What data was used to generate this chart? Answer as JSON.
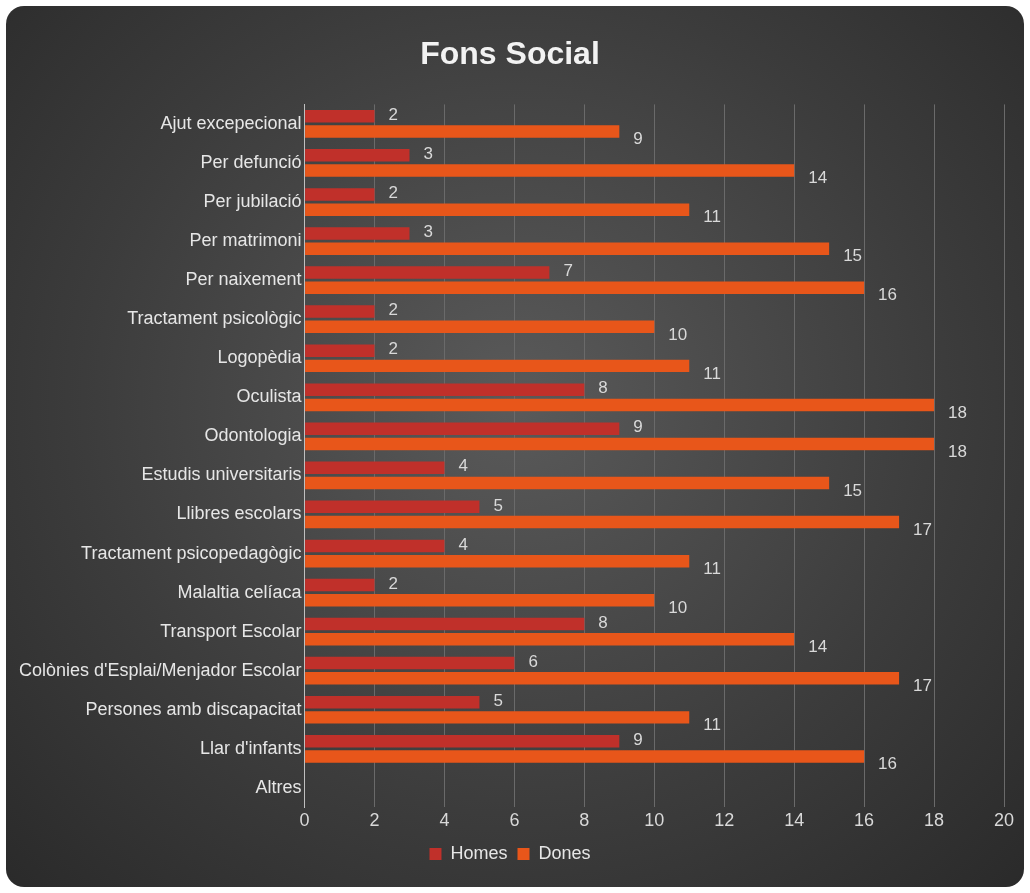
{
  "chart_data": {
    "type": "bar",
    "orientation": "horizontal",
    "title": "Fons Social",
    "categories": [
      "Ajut excepecional",
      "Per defunció",
      "Per jubilació",
      "Per matrimoni",
      "Per naixement",
      "Tractament psicològic",
      "Logopèdia",
      "Oculista",
      "Odontologia",
      "Estudis universitaris",
      "Llibres escolars",
      "Tractament psicopedagògic",
      "Malaltia celíaca",
      "Transport Escolar",
      "Colònies d'Esplai/Menjador Escolar",
      "Persones amb discapacitat",
      "Llar d'infants",
      "Altres"
    ],
    "series": [
      {
        "name": "Homes",
        "color": "#c0302a",
        "values": [
          2,
          3,
          2,
          3,
          7,
          2,
          2,
          8,
          9,
          4,
          5,
          4,
          2,
          8,
          6,
          5,
          9,
          null
        ]
      },
      {
        "name": "Dones",
        "color": "#e8561a",
        "values": [
          9,
          14,
          11,
          15,
          16,
          10,
          11,
          18,
          18,
          15,
          17,
          11,
          10,
          14,
          17,
          11,
          16,
          null
        ]
      }
    ],
    "xlim": [
      0,
      20
    ],
    "xticks": [
      0,
      2,
      4,
      6,
      8,
      10,
      12,
      14,
      16,
      18,
      20
    ],
    "grid": "x",
    "legend": "bottom",
    "data_labels": true
  }
}
